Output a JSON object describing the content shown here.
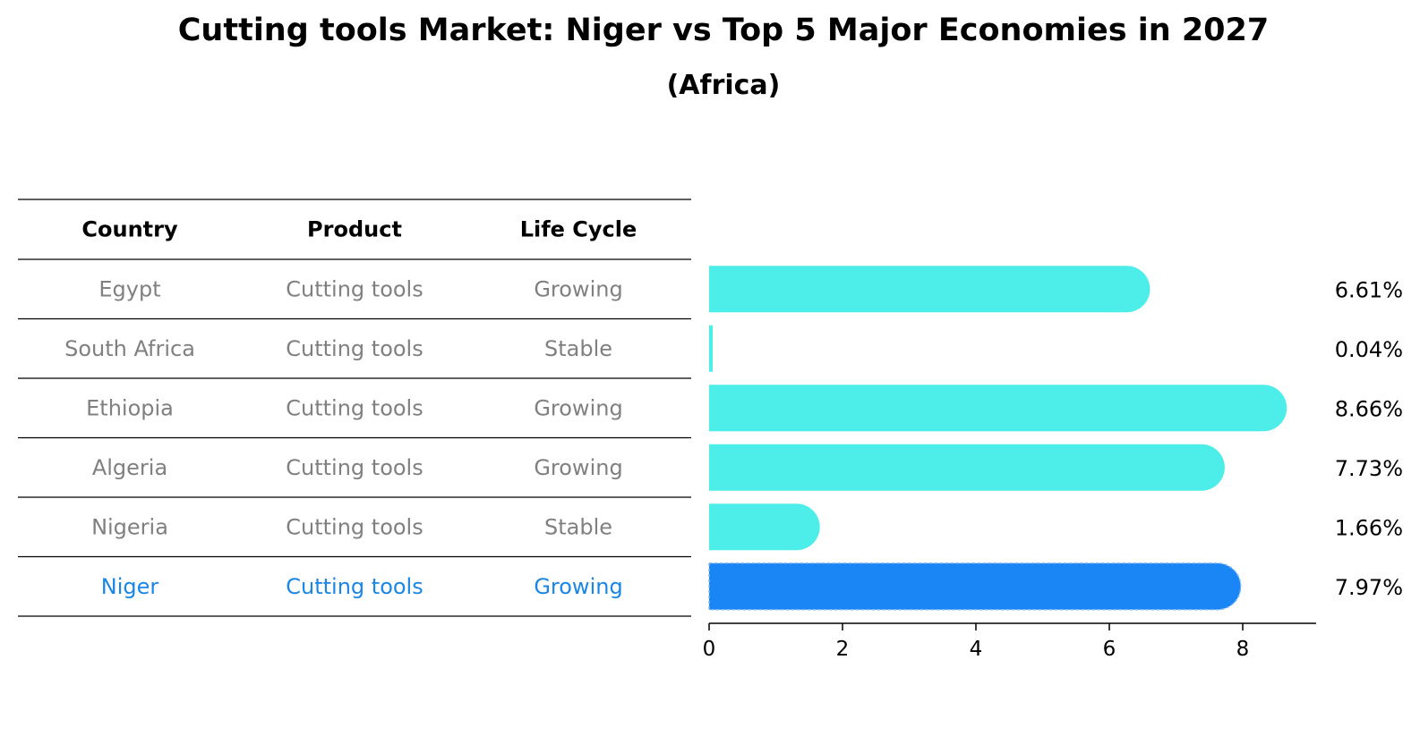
{
  "chart_data": {
    "type": "bar",
    "orientation": "horizontal",
    "title": "Cutting tools Market: Niger vs Top 5 Major Economies in 2027",
    "subtitle": "(Africa)",
    "table": {
      "headers": [
        "Country",
        "Product",
        "Life Cycle"
      ],
      "rows": [
        {
          "country": "Egypt",
          "product": "Cutting tools",
          "life_cycle": "Growing"
        },
        {
          "country": "South Africa",
          "product": "Cutting tools",
          "life_cycle": "Stable"
        },
        {
          "country": "Ethiopia",
          "product": "Cutting tools",
          "life_cycle": "Growing"
        },
        {
          "country": "Algeria",
          "product": "Cutting tools",
          "life_cycle": "Growing"
        },
        {
          "country": "Nigeria",
          "product": "Cutting tools",
          "life_cycle": "Stable"
        },
        {
          "country": "Niger",
          "product": "Cutting tools",
          "life_cycle": "Growing"
        }
      ]
    },
    "categories": [
      "Egypt",
      "South Africa",
      "Ethiopia",
      "Algeria",
      "Nigeria",
      "Niger"
    ],
    "values": [
      6.61,
      0.04,
      8.66,
      7.73,
      1.66,
      7.97
    ],
    "value_labels": [
      "6.61%",
      "0.04%",
      "8.66%",
      "7.73%",
      "1.66%",
      "7.97%"
    ],
    "highlight": "Niger",
    "xlim": [
      0,
      9.1
    ],
    "xticks": [
      "0",
      "2",
      "4",
      "6",
      "8"
    ],
    "colors": {
      "bar": "#4deee9",
      "highlight": "#1a86f5",
      "highlight_text": "#1a86e6",
      "muted_text": "#808080"
    }
  }
}
